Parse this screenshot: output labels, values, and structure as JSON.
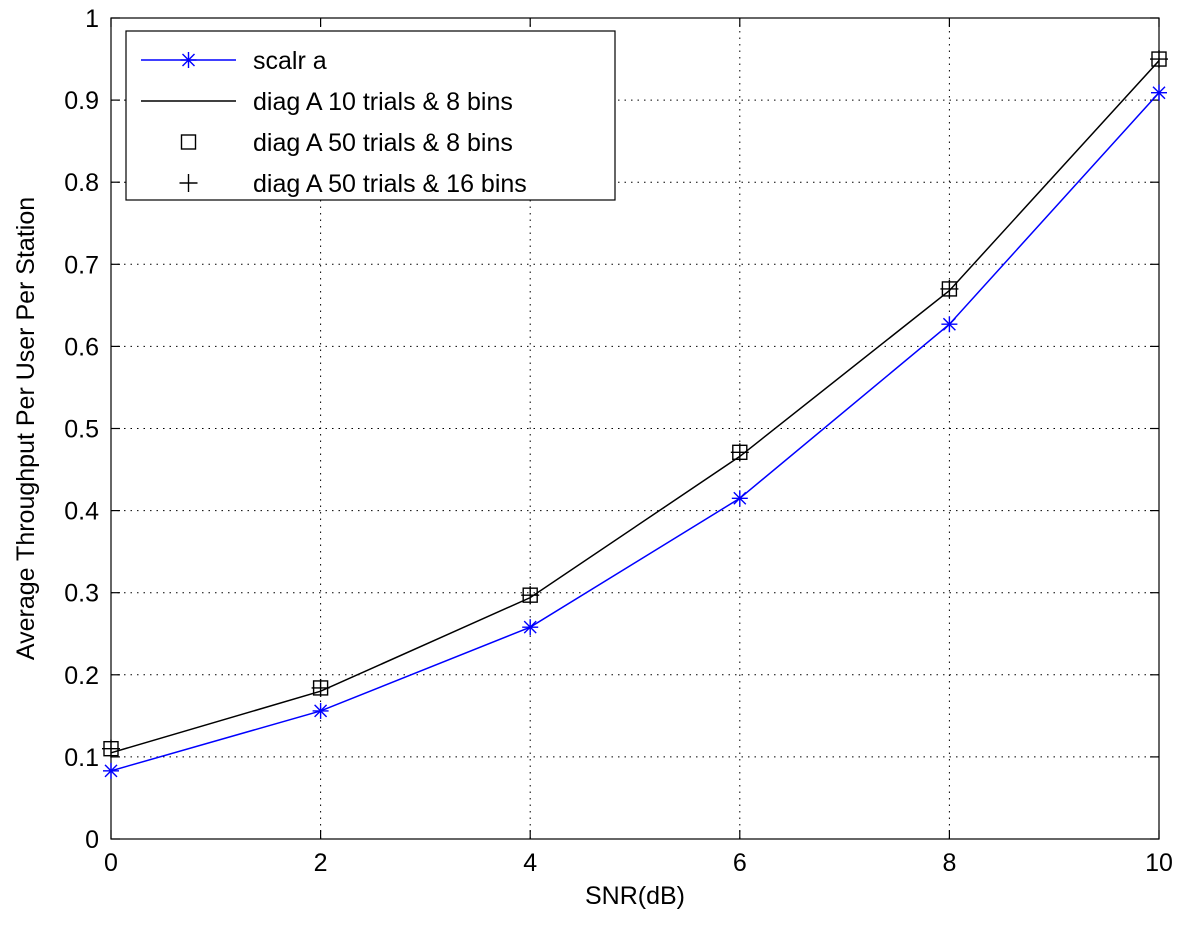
{
  "chart_data": {
    "type": "line",
    "title": "",
    "xlabel": "SNR(dB)",
    "ylabel": "Average Throughput Per User Per Station",
    "xlim": [
      0,
      10
    ],
    "ylim": [
      0,
      1
    ],
    "x_ticks": [
      0,
      2,
      4,
      6,
      8,
      10
    ],
    "x_tick_labels": [
      "0",
      "2",
      "4",
      "6",
      "8",
      "10"
    ],
    "y_ticks": [
      0,
      0.1,
      0.2,
      0.3,
      0.4,
      0.5,
      0.6,
      0.7,
      0.8,
      0.9,
      1
    ],
    "y_tick_labels": [
      "0",
      "0.1",
      "0.2",
      "0.3",
      "0.4",
      "0.5",
      "0.6",
      "0.7",
      "0.8",
      "0.9",
      "1"
    ],
    "grid": true,
    "legend_position": "top-left",
    "x": [
      0,
      2,
      4,
      6,
      8,
      10
    ],
    "series": [
      {
        "name": "scalr a",
        "values": [
          0.083,
          0.156,
          0.258,
          0.415,
          0.627,
          0.909
        ],
        "color": "#0000ff",
        "line": "solid",
        "marker": "asterisk"
      },
      {
        "name": "diag A 10 trials & 8 bins",
        "values": [
          0.105,
          0.18,
          0.294,
          0.466,
          0.668,
          0.948
        ],
        "color": "#000000",
        "line": "solid",
        "marker": "none"
      },
      {
        "name": "diag A 50 trials & 8 bins",
        "values": [
          0.11,
          0.184,
          0.297,
          0.471,
          0.67,
          0.95
        ],
        "color": "#000000",
        "line": "none",
        "marker": "square"
      },
      {
        "name": "diag A 50 trials & 16 bins",
        "values": [
          0.11,
          0.184,
          0.297,
          0.471,
          0.67,
          0.95
        ],
        "color": "#000000",
        "line": "none",
        "marker": "plus"
      }
    ]
  }
}
